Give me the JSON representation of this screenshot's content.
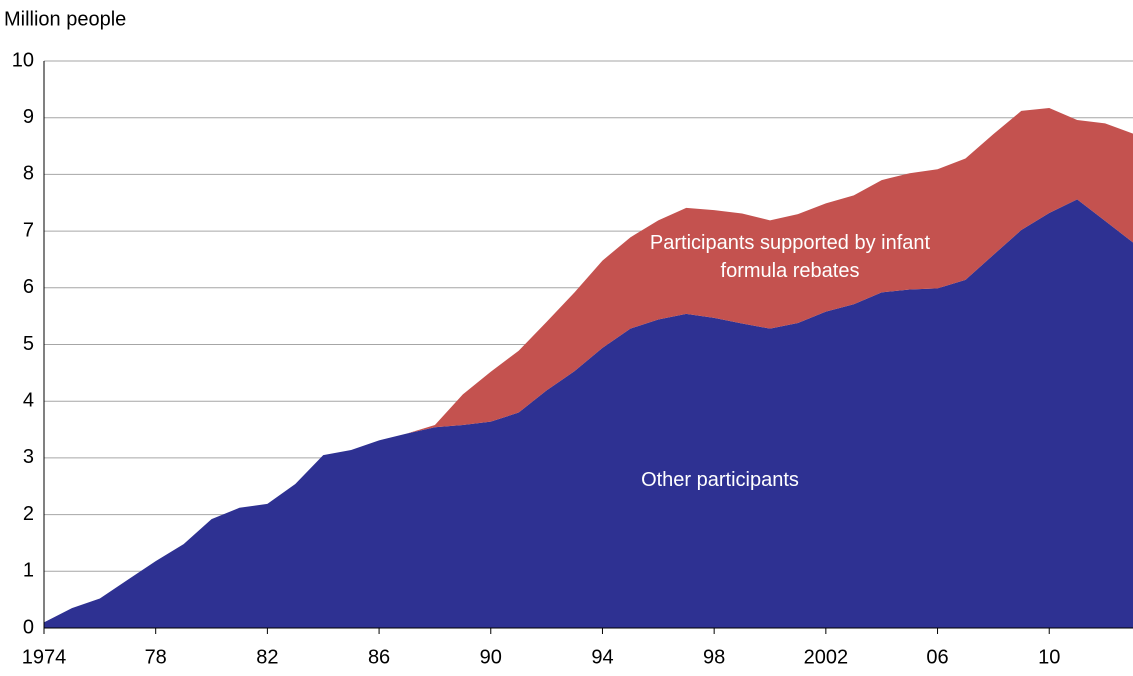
{
  "chart_data": {
    "type": "stacked-area",
    "y_label": "Million people",
    "x": [
      1974,
      1975,
      1976,
      1977,
      1978,
      1979,
      1980,
      1981,
      1982,
      1983,
      1984,
      1985,
      1986,
      1987,
      1988,
      1989,
      1990,
      1991,
      1992,
      1993,
      1994,
      1995,
      1996,
      1997,
      1998,
      1999,
      2000,
      2001,
      2002,
      2003,
      2004,
      2005,
      2006,
      2007,
      2008,
      2009,
      2010,
      2011,
      2012,
      2013
    ],
    "series": [
      {
        "name": "Other participants",
        "color": "#2e3192",
        "values": [
          0.1,
          0.35,
          0.52,
          0.85,
          1.18,
          1.48,
          1.92,
          2.12,
          2.19,
          2.54,
          3.05,
          3.14,
          3.31,
          3.43,
          3.54,
          3.58,
          3.64,
          3.8,
          4.19,
          4.53,
          4.94,
          5.28,
          5.44,
          5.54,
          5.47,
          5.37,
          5.28,
          5.38,
          5.58,
          5.71,
          5.92,
          5.97,
          5.99,
          6.14,
          6.58,
          7.02,
          7.32,
          7.56,
          7.18,
          6.8
        ]
      },
      {
        "name": "Participants supported by infant formula rebates",
        "color": "#c4524f",
        "values": [
          0,
          0,
          0,
          0,
          0,
          0,
          0,
          0,
          0,
          0,
          0,
          0,
          0,
          0,
          0.04,
          0.54,
          0.88,
          1.09,
          1.21,
          1.39,
          1.54,
          1.61,
          1.75,
          1.87,
          1.9,
          1.94,
          1.91,
          1.92,
          1.91,
          1.92,
          1.98,
          2.05,
          2.1,
          2.14,
          2.13,
          2.1,
          1.85,
          1.4,
          1.72,
          1.92
        ]
      }
    ],
    "xlim": [
      1974,
      2013
    ],
    "xticks": [
      1974,
      {
        "value": 1978,
        "label": "78"
      },
      {
        "value": 1982,
        "label": "82"
      },
      {
        "value": 1986,
        "label": "86"
      },
      {
        "value": 1990,
        "label": "90"
      },
      {
        "value": 1994,
        "label": "94"
      },
      {
        "value": 1998,
        "label": "98"
      },
      2002,
      {
        "value": 2006,
        "label": "06"
      },
      {
        "value": 2010,
        "label": "10"
      }
    ],
    "ylim": [
      0,
      10
    ],
    "yticks": [
      0,
      1,
      2,
      3,
      4,
      5,
      6,
      7,
      8,
      9,
      10
    ],
    "grid": true
  }
}
